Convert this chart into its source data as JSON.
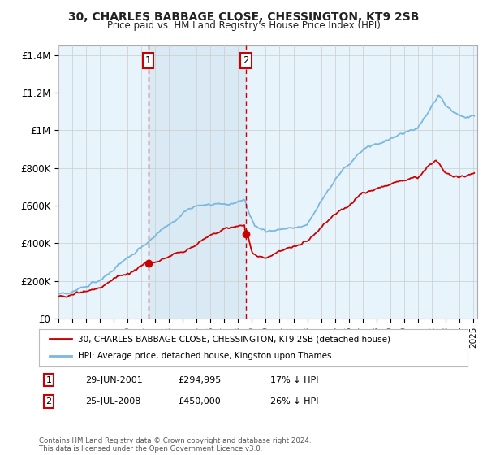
{
  "title": "30, CHARLES BABBAGE CLOSE, CHESSINGTON, KT9 2SB",
  "subtitle": "Price paid vs. HM Land Registry's House Price Index (HPI)",
  "ylabel_ticks": [
    "£0",
    "£200K",
    "£400K",
    "£600K",
    "£800K",
    "£1M",
    "£1.2M",
    "£1.4M"
  ],
  "ylim": [
    0,
    1450000
  ],
  "xlim_start": 1995.0,
  "xlim_end": 2025.3,
  "legend_label_red": "30, CHARLES BABBAGE CLOSE, CHESSINGTON, KT9 2SB (detached house)",
  "legend_label_blue": "HPI: Average price, detached house, Kingston upon Thames",
  "marker1_x": 2001.49,
  "marker1_y": 294995,
  "marker1_label": "1",
  "marker1_date": "29-JUN-2001",
  "marker1_price": "£294,995",
  "marker1_hpi": "17% ↓ HPI",
  "marker2_x": 2008.56,
  "marker2_y": 450000,
  "marker2_label": "2",
  "marker2_date": "25-JUL-2008",
  "marker2_price": "£450,000",
  "marker2_hpi": "26% ↓ HPI",
  "footnote": "Contains HM Land Registry data © Crown copyright and database right 2024.\nThis data is licensed under the Open Government Licence v3.0.",
  "color_red": "#cc0000",
  "color_blue": "#7ab8e0",
  "color_shade": "#daeaf5",
  "color_grid": "#cccccc",
  "background_color": "#ffffff"
}
